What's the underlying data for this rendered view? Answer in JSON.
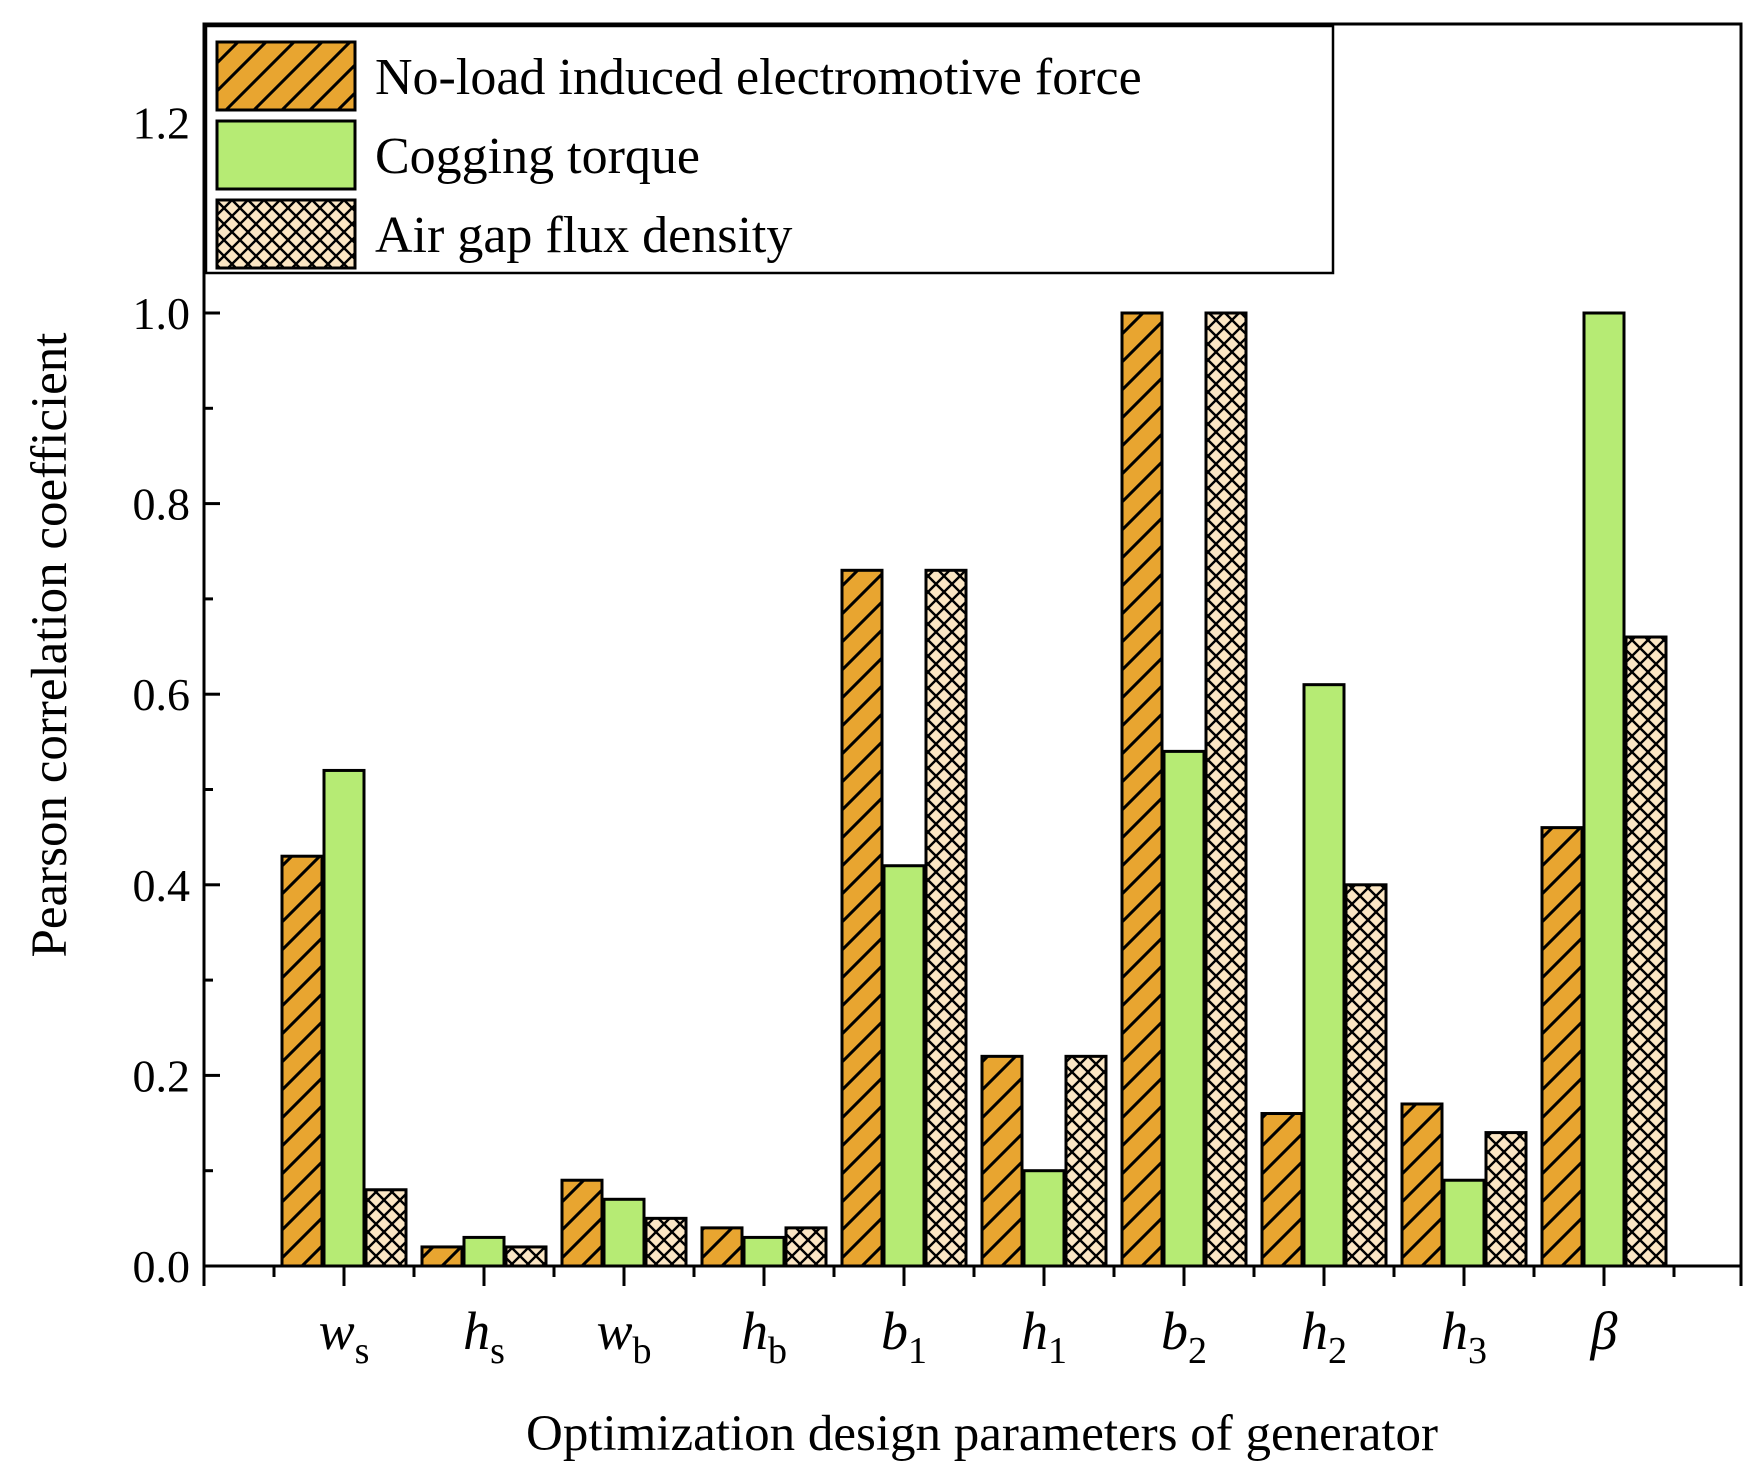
{
  "chart_data": {
    "type": "bar",
    "xlabel": "Optimization design parameters of generator",
    "ylabel": "Pearson correlation coefficient",
    "ylim": [
      0,
      1.3
    ],
    "yticks": [
      "0.0",
      "0.2",
      "0.4",
      "0.6",
      "0.8",
      "1.0",
      "1.2"
    ],
    "categories": [
      {
        "base": "w",
        "sub": "s",
        "italic_sub": false
      },
      {
        "base": "h",
        "sub": "s",
        "italic_sub": false
      },
      {
        "base": "w",
        "sub": "b",
        "italic_sub": false
      },
      {
        "base": "h",
        "sub": "b",
        "italic_sub": false
      },
      {
        "base": "b",
        "sub": "1",
        "italic_sub": false
      },
      {
        "base": "h",
        "sub": "1",
        "italic_sub": false
      },
      {
        "base": "b",
        "sub": "2",
        "italic_sub": false
      },
      {
        "base": "h",
        "sub": "2",
        "italic_sub": false
      },
      {
        "base": "h",
        "sub": "3",
        "italic_sub": false
      },
      {
        "base": "β",
        "sub": "",
        "italic_sub": false
      }
    ],
    "series": [
      {
        "name": "No-load induced electromotive force",
        "color": "#E8A530",
        "pattern": "diagonal",
        "values": [
          0.43,
          0.02,
          0.09,
          0.04,
          0.73,
          0.22,
          1.0,
          0.16,
          0.17,
          0.46
        ]
      },
      {
        "name": "Cogging torque",
        "color": "#B6EB74",
        "pattern": "solid",
        "values": [
          0.52,
          0.03,
          0.07,
          0.03,
          0.42,
          0.1,
          0.54,
          0.61,
          0.09,
          1.0
        ]
      },
      {
        "name": "Air gap flux density",
        "color": "#FBE6C4",
        "pattern": "crosshatch",
        "values": [
          0.08,
          0.02,
          0.05,
          0.04,
          0.73,
          0.22,
          1.0,
          0.4,
          0.14,
          0.66
        ]
      }
    ],
    "legend_position": "top-left"
  }
}
